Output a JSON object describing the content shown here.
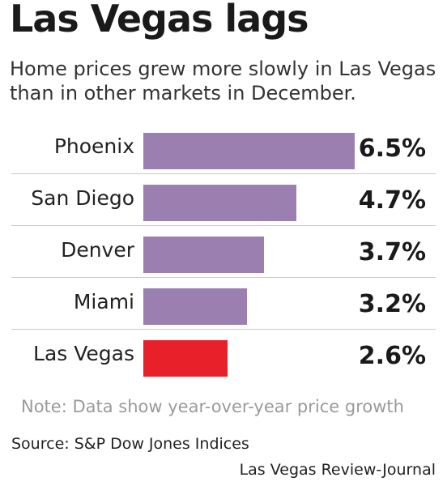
{
  "title": "Las Vegas lags",
  "subtitle": "Home prices grew more slowly in Las Vegas than in other markets in December.",
  "note": "Note: Data show year-over-year price growth",
  "source": "Source: S&P Dow Jones Indices",
  "credit": "Las Vegas Review-Journal",
  "colors": {
    "bar": "#9b7fb0",
    "highlight": "#e8202a"
  },
  "chart_data": {
    "type": "bar",
    "orientation": "horizontal",
    "categories": [
      "Phoenix",
      "San Diego",
      "Denver",
      "Miami",
      "Las Vegas"
    ],
    "values": [
      6.5,
      4.7,
      3.7,
      3.2,
      2.6
    ],
    "value_labels": [
      "6.5%",
      "4.7%",
      "3.7%",
      "3.2%",
      "2.6%"
    ],
    "highlight_category": "Las Vegas",
    "xlim": [
      0,
      6.5
    ],
    "grid": false,
    "legend": "none"
  }
}
